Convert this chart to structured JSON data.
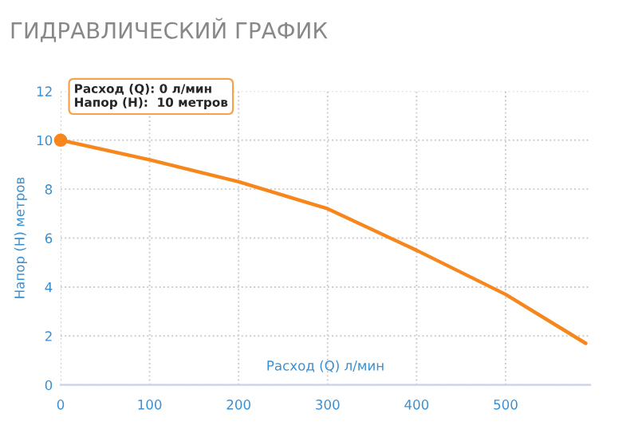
{
  "chart_data": {
    "type": "line",
    "title": "ГИДРАВЛИЧЕСКИЙ ГРАФИК",
    "xlabel": "Расход (Q) л/мин",
    "ylabel": "Напор (H) метров",
    "x": [
      0,
      100,
      200,
      300,
      400,
      500,
      590
    ],
    "series": [
      {
        "color": "#f7861c",
        "values": [
          10,
          9.2,
          8.3,
          7.2,
          5.5,
          3.7,
          1.7
        ]
      }
    ],
    "annotations": [
      {
        "text": "Расход (Q): 0 л/мин\nНапор (H):  10 метров",
        "x": 0,
        "y": 10
      }
    ],
    "xlim": [
      0,
      595
    ],
    "ylim": [
      0,
      12
    ],
    "xticks": [
      0,
      100,
      200,
      300,
      400,
      500
    ],
    "yticks": [
      0,
      2,
      4,
      6,
      8,
      10,
      12
    ],
    "grid": true,
    "marker": "none",
    "line_style": "solid"
  }
}
